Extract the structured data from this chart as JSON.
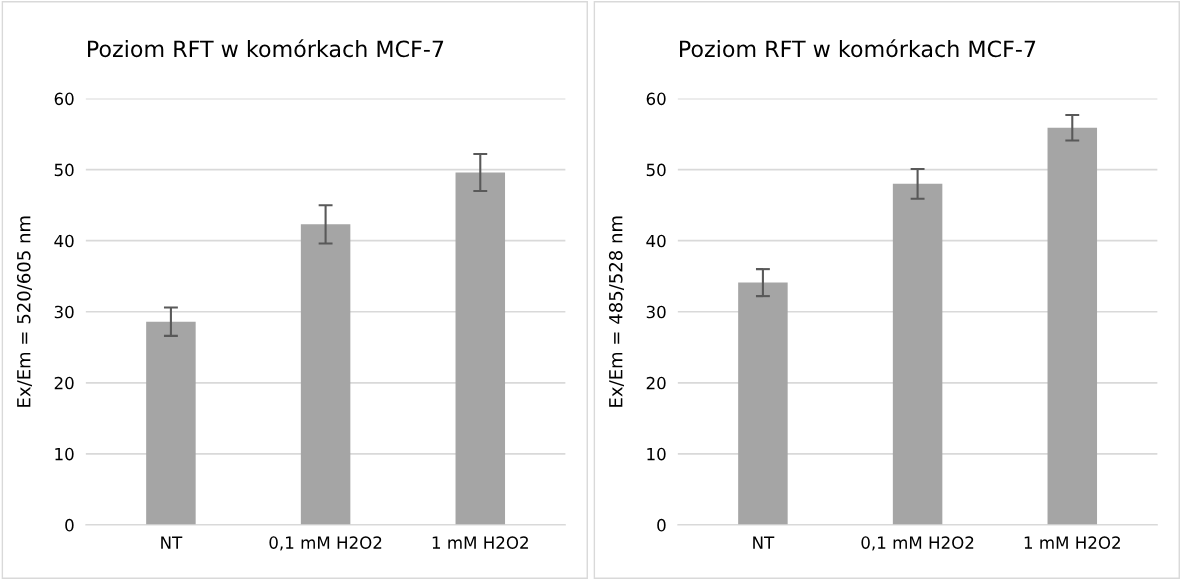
{
  "chart_data": [
    {
      "type": "bar",
      "title": "Poziom RFT w komórkach MCF-7",
      "ylabel": "Ex/Em = 520/605 nm",
      "categories": [
        "NT",
        "0,1 mM H2O2",
        "1 mM H2O2"
      ],
      "values": [
        28.6,
        42.3,
        49.6
      ],
      "errors": [
        2.0,
        2.7,
        2.6
      ],
      "color": "#a5a5a5",
      "ylim": [
        0,
        60
      ],
      "yticks": [
        0,
        10,
        20,
        30,
        40,
        50,
        60
      ],
      "grid": "y",
      "legend": false
    },
    {
      "type": "bar",
      "title": "Poziom RFT w komórkach MCF-7",
      "ylabel": "Ex/Em = 485/528 nm",
      "categories": [
        "NT",
        "0,1 mM H2O2",
        "1 mM H2O2"
      ],
      "values": [
        34.1,
        48.0,
        55.9
      ],
      "errors": [
        1.9,
        2.1,
        1.8
      ],
      "color": "#a5a5a5",
      "ylim": [
        0,
        60
      ],
      "yticks": [
        0,
        10,
        20,
        30,
        40,
        50,
        60
      ],
      "grid": "y",
      "legend": false
    }
  ]
}
